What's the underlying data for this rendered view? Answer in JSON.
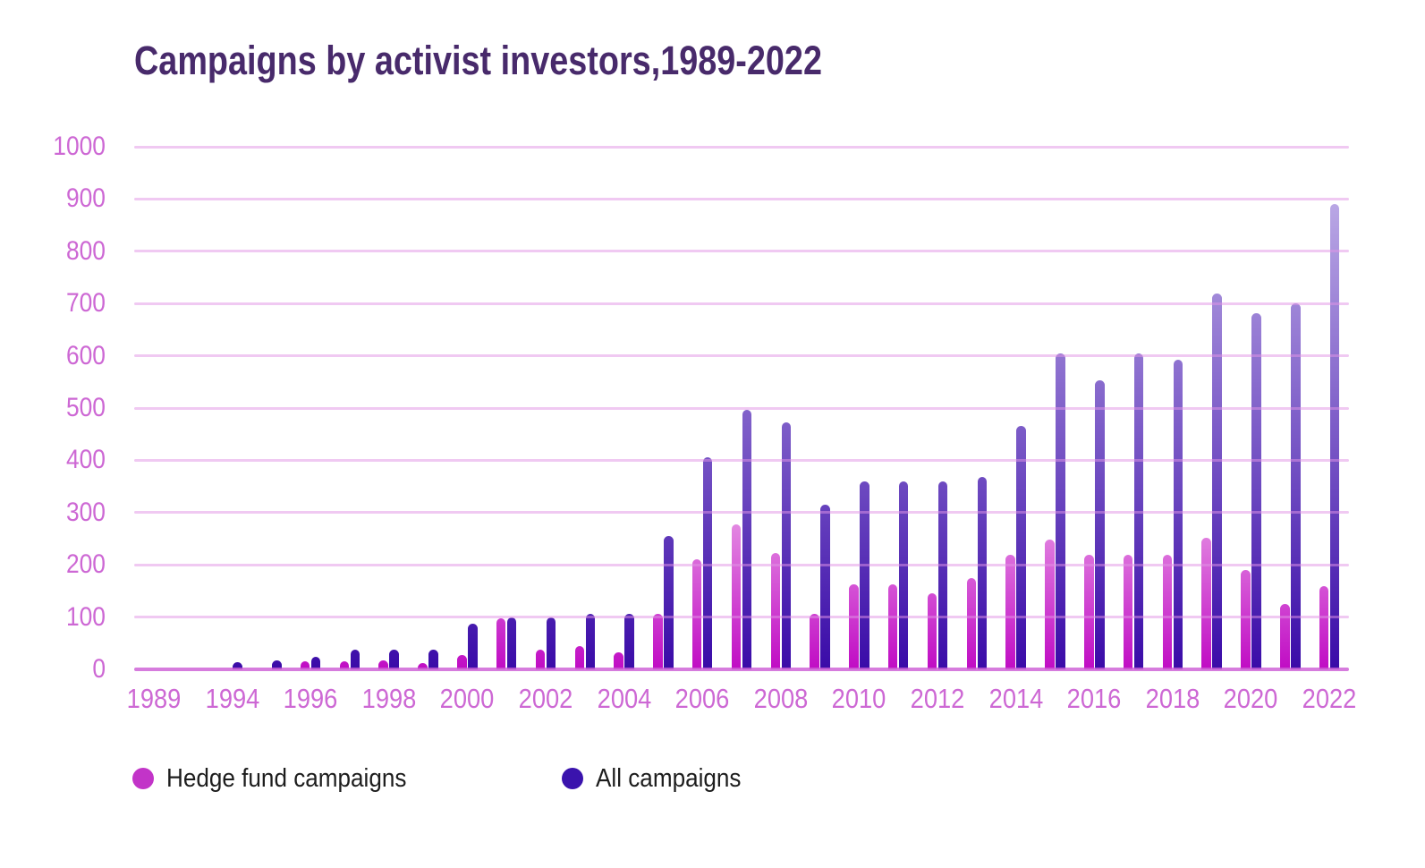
{
  "title": "Campaigns by activist investors,1989-2022",
  "legend": {
    "items": [
      {
        "label": "Hedge fund campaigns",
        "dot_color": "#c234c8"
      },
      {
        "label": "All campaigns",
        "dot_color": "#3a13ad"
      }
    ]
  },
  "colors": {
    "title": "#482a6b",
    "axis_labels": "#cd68d4",
    "gridline": "#f0c3ef",
    "baseline": "#d46ed8",
    "hedge_gradient_bottom": "#c00cc4",
    "hedge_gradient_top": "#efb3ec",
    "all_gradient_bottom": "#3a0ba8",
    "all_gradient_top": "#cdbfee"
  },
  "chart_data": {
    "type": "bar",
    "title": "Campaigns by activist investors,1989-2022",
    "xlabel": "",
    "ylabel": "",
    "ylim": [
      0,
      1000
    ],
    "ytick_step": 100,
    "y_tick_labels": [
      "0",
      "100",
      "200",
      "300",
      "400",
      "500",
      "600",
      "700",
      "800",
      "900",
      "1000"
    ],
    "x_tick_labels": [
      "1989",
      "1994",
      "1996",
      "1998",
      "2000",
      "2002",
      "2004",
      "2006",
      "2008",
      "2010",
      "2012",
      "2014",
      "2016",
      "2018",
      "2020",
      "2022"
    ],
    "x_tick_every": 2,
    "grid": true,
    "legend_position": "bottom",
    "x_slots": [
      "1989",
      "",
      "1994",
      "1995",
      "1996",
      "1997",
      "1998",
      "1999",
      "2000",
      "2001",
      "2002",
      "2003",
      "2004",
      "2005",
      "2006",
      "2007",
      "2008",
      "2009",
      "2010",
      "2011",
      "2012",
      "2013",
      "2014",
      "2015",
      "2016",
      "2017",
      "2018",
      "2019",
      "2020",
      "2021",
      "2022"
    ],
    "series": [
      {
        "name": "Hedge fund campaigns",
        "values": [
          0,
          0,
          0,
          0,
          15,
          15,
          17,
          12,
          27,
          97,
          38,
          44,
          33,
          107,
          210,
          278,
          222,
          107,
          162,
          162,
          145,
          175,
          220,
          248,
          220,
          220,
          220,
          252,
          190,
          125,
          160
        ]
      },
      {
        "name": "All campaigns",
        "values": [
          0,
          0,
          14,
          18,
          24,
          38,
          38,
          38,
          88,
          100,
          100,
          107,
          107,
          255,
          405,
          497,
          472,
          315,
          360,
          360,
          360,
          368,
          465,
          605,
          553,
          605,
          593,
          720,
          682,
          700,
          890
        ]
      }
    ]
  }
}
